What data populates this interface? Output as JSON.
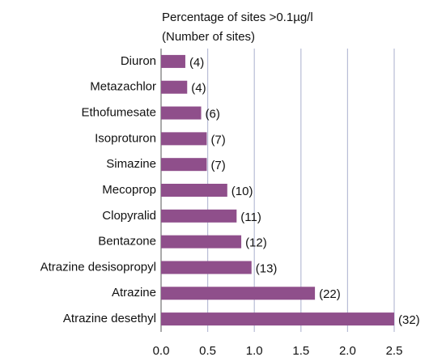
{
  "chart_data": {
    "type": "barh",
    "axis_label_lines": [
      "Percentage of sites >0.1µg/l",
      "(Number of sites)"
    ],
    "categories": [
      "Diuron",
      "Metazachlor",
      "Ethofumesate",
      "Isoproturon",
      "Simazine",
      "Mecoprop",
      "Clopyralid",
      "Bentazone",
      "Atrazine desisopropyl",
      "Atrazine",
      "Atrazine desethyl"
    ],
    "values": [
      0.26,
      0.28,
      0.43,
      0.49,
      0.49,
      0.71,
      0.81,
      0.86,
      0.97,
      1.65,
      2.5
    ],
    "site_labels": [
      "(4)",
      "(4)",
      "(6)",
      "(7)",
      "(7)",
      "(10)",
      "(11)",
      "(12)",
      "(13)",
      "(22)",
      "(32)"
    ],
    "color": "#8f4f8b",
    "xlim": [
      0,
      2.5
    ],
    "xticks": [
      {
        "value": 0,
        "label": "0.0"
      },
      0.5,
      {
        "value": 1,
        "label": "1.0"
      },
      1.5,
      {
        "value": 2,
        "label": "2.0"
      },
      2.5
    ],
    "grid": true
  }
}
